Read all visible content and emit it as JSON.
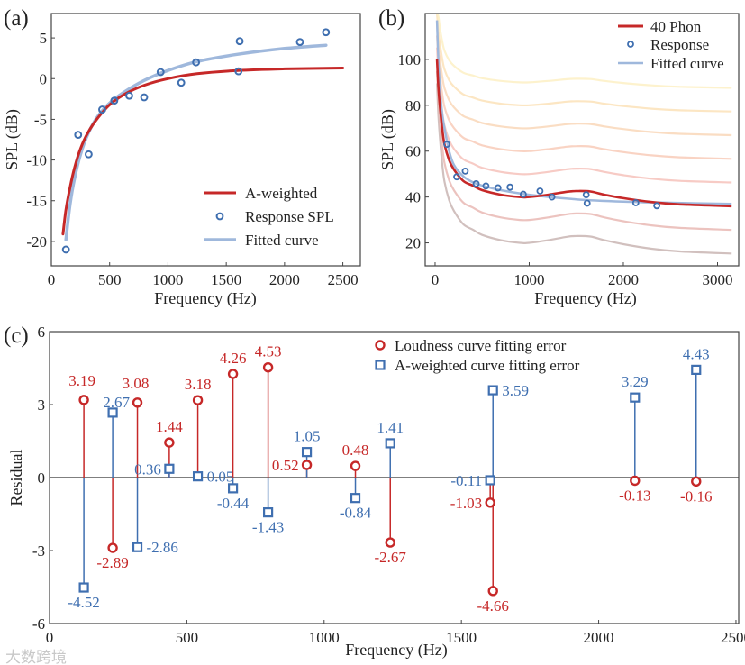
{
  "watermark": "大数跨境",
  "colors": {
    "red": "#c62828",
    "blue": "#3f6fb0",
    "fit": "#9fb8dc",
    "axis": "#444444"
  },
  "chart_data": [
    {
      "panel": "(a)",
      "type": "line",
      "xlabel": "Frequency (Hz)",
      "ylabel": "SPL (dB)",
      "xlim": [
        0,
        2650
      ],
      "ylim": [
        -23,
        8
      ],
      "xticks": [
        "0",
        "500",
        "1000",
        "1500",
        "2000",
        "2500"
      ],
      "xtick_values": [
        0,
        500,
        1000,
        1500,
        2000,
        2500
      ],
      "yticks": [
        "5",
        "0",
        "-5",
        "-10",
        "-15",
        "-20"
      ],
      "ytick_values": [
        5,
        0,
        -5,
        -10,
        -15,
        -20
      ],
      "legend_position": "bottom-right",
      "series": [
        {
          "name": "A-weighted",
          "kind": "line",
          "color": "#c62828",
          "x": [
            100,
            125,
            160,
            200,
            250,
            315,
            400,
            500,
            630,
            800,
            1000,
            1250,
            1600,
            2000,
            2500
          ],
          "y": [
            -19.1,
            -16.1,
            -13.4,
            -10.9,
            -8.6,
            -6.6,
            -4.8,
            -3.2,
            -1.9,
            -0.8,
            0,
            0.6,
            1.0,
            1.2,
            1.3
          ]
        },
        {
          "name": "Response SPL",
          "kind": "scatter",
          "color": "#3f6fb0",
          "x": [
            125,
            230,
            320,
            436,
            540,
            668,
            796,
            937,
            1114,
            1241,
            1605,
            1615,
            2132,
            2355
          ],
          "y": [
            -21.0,
            -6.9,
            -9.3,
            -3.8,
            -2.7,
            -2.1,
            -2.3,
            0.8,
            -0.5,
            2.0,
            0.9,
            4.6,
            4.5,
            5.7
          ]
        },
        {
          "name": "Fitted curve",
          "kind": "line",
          "color": "#9fb8dc",
          "x": [
            125,
            160,
            200,
            250,
            320,
            400,
            500,
            630,
            800,
            1000,
            1250,
            1600,
            2000,
            2355
          ],
          "y": [
            -19.8,
            -15.5,
            -12.2,
            -9.3,
            -6.6,
            -4.6,
            -3.0,
            -1.6,
            -0.2,
            1.0,
            2.1,
            3.0,
            3.7,
            4.1
          ]
        }
      ]
    },
    {
      "panel": "(b)",
      "type": "line",
      "xlabel": "Frequency (Hz)",
      "ylabel": "SPL (dB)",
      "xlim": [
        -105,
        3225
      ],
      "ylim": [
        10,
        120
      ],
      "xticks": [
        "0",
        "1000",
        "2000",
        "3000"
      ],
      "xtick_values": [
        0,
        1000,
        2000,
        3000
      ],
      "yticks": [
        "100",
        "80",
        "60",
        "40",
        "20"
      ],
      "ytick_values": [
        100,
        80,
        60,
        40,
        20
      ],
      "legend_position": "top-right",
      "contour_phons": [
        20,
        30,
        50,
        60,
        70,
        80,
        90
      ],
      "contour_colors": [
        "#c9b5b3",
        "#e9b9b4",
        "#f6c2bb",
        "#f8cbb9",
        "#f9d7b8",
        "#fbe2b8",
        "#fdf0c4"
      ],
      "series": [
        {
          "name": "40 Phon",
          "kind": "line",
          "color": "#c62828",
          "x": [
            20,
            35,
            50,
            75,
            100,
            150,
            200,
            300,
            400,
            500,
            700,
            900,
            1000,
            1200,
            1400,
            1500,
            1650,
            1800,
            2000,
            2300,
            2600,
            3150
          ],
          "y": [
            100,
            88,
            80,
            70,
            63,
            56,
            52,
            47,
            45,
            43,
            41,
            40,
            40,
            41,
            42.3,
            42.6,
            42.4,
            41,
            39.5,
            37.8,
            36.8,
            36
          ]
        },
        {
          "name": "Response",
          "kind": "scatter",
          "color": "#3f6fb0",
          "x": [
            125,
            230,
            320,
            436,
            540,
            668,
            796,
            937,
            1114,
            1241,
            1605,
            1615,
            2132,
            2355
          ],
          "y": [
            63,
            48.8,
            51.3,
            45.8,
            44.8,
            44,
            44.3,
            41.2,
            42.6,
            40,
            41,
            37.3,
            37.5,
            36.2
          ]
        },
        {
          "name": "Fitted curve",
          "kind": "line",
          "color": "#9fb8dc",
          "x": [
            20,
            40,
            70,
            100,
            150,
            200,
            300,
            400,
            500,
            700,
            1000,
            1500,
            2000,
            2500,
            3150
          ],
          "y": [
            117,
            95,
            78,
            70,
            60,
            54,
            49,
            46.5,
            45,
            43,
            41,
            39,
            38,
            37.5,
            37
          ]
        }
      ]
    },
    {
      "panel": "(c)",
      "type": "scatter",
      "xlabel": "Frequency (Hz)",
      "ylabel": "Residual",
      "xlim": [
        0,
        2510
      ],
      "ylim": [
        -6,
        6
      ],
      "xticks": [
        "0",
        "500",
        "1000",
        "1500",
        "2000",
        "2500"
      ],
      "xtick_values": [
        0,
        500,
        1000,
        1500,
        2000,
        2500
      ],
      "yticks": [
        "6",
        "3",
        "0",
        "-3",
        "-6"
      ],
      "ytick_values": [
        6,
        3,
        0,
        -3,
        -6
      ],
      "legend_position": "top-center",
      "series": [
        {
          "name": "Loudness curve fitting error",
          "marker": "circle",
          "color": "#c62828",
          "x": [
            125,
            230,
            320,
            436,
            540,
            668,
            796,
            937,
            1114,
            1241,
            1605,
            1615,
            2132,
            2355
          ],
          "y": [
            3.19,
            -2.89,
            3.08,
            1.44,
            3.18,
            4.26,
            4.53,
            0.52,
            0.48,
            -2.67,
            -1.03,
            -4.66,
            -0.13,
            -0.16
          ],
          "labels": [
            "3.19",
            "-2.89",
            "3.08",
            "1.44",
            "3.18",
            "4.26",
            "4.53",
            "0.52",
            "0.48",
            "-2.67",
            "-1.03",
            "-4.66",
            "-0.13",
            "-0.16"
          ]
        },
        {
          "name": "A-weighted curve fitting error",
          "marker": "square",
          "color": "#3f6fb0",
          "x": [
            125,
            230,
            320,
            436,
            540,
            668,
            796,
            937,
            1114,
            1241,
            1605,
            1615,
            2132,
            2355
          ],
          "y": [
            -4.52,
            2.67,
            -2.86,
            0.36,
            0.05,
            -0.44,
            -1.43,
            1.05,
            -0.84,
            1.41,
            -0.11,
            3.59,
            3.29,
            4.43
          ],
          "labels": [
            "-4.52",
            "2.67",
            "-2.86",
            "0.36",
            "0.05",
            "-0.44",
            "-1.43",
            "1.05",
            "-0.84",
            "1.41",
            "-0.11",
            "3.59",
            "3.29",
            "4.43"
          ]
        }
      ]
    }
  ]
}
